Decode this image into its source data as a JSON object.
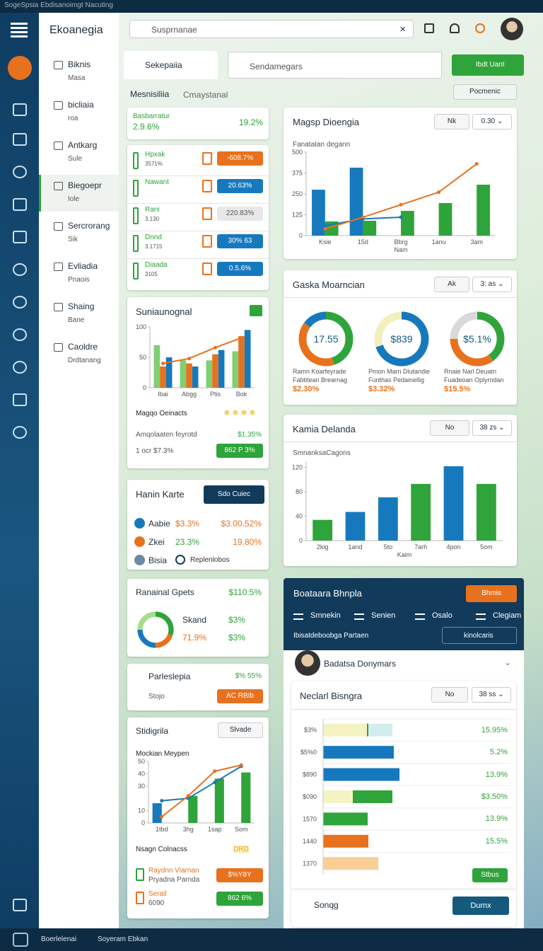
{
  "top_bar": {
    "title": "SogeSpsia Ebdisanoimgt Nacuting"
  },
  "sidebar": {
    "title": "Ekoanegia",
    "items": [
      {
        "label": "Biknis",
        "sub": "Masa"
      },
      {
        "label": "bicliaia",
        "sub": "roa"
      },
      {
        "label": "Antkarg",
        "sub": "Sule"
      },
      {
        "label": "Biegoepr",
        "sub": "Iole"
      },
      {
        "label": "Sercrorang",
        "sub": "Sik"
      },
      {
        "label": "Evliadia",
        "sub": "Pnaois"
      },
      {
        "label": "Shaing",
        "sub": "Bane"
      },
      {
        "label": "Caoldre",
        "sub": "Drdtanang"
      }
    ]
  },
  "header": {
    "search": "Susprnanae"
  },
  "toolbar": {
    "tab": "Sekepaiia",
    "search": "Sendamegars",
    "button": "Ibdt Uant"
  },
  "section": {
    "title": "Mesnisiliia",
    "subtitle": "Cmaystanal",
    "button": "Pocmenic"
  },
  "summary": {
    "label": "Basbarratur",
    "value": "2.9.6%",
    "change": "19.2%"
  },
  "list": [
    {
      "label": "Hpxak",
      "sub": "3571%",
      "pill": "-608.7%"
    },
    {
      "label": "Nawant",
      "sub": "",
      "pill": "20.63%"
    },
    {
      "label": "Rani",
      "sub": "3.130",
      "pill": "220.83%"
    },
    {
      "label": "Dnnd",
      "sub": "3.1715",
      "pill": "30% 63"
    },
    {
      "label": "Diaada",
      "sub": "3105",
      "pill": "0.5.6%"
    }
  ],
  "sales_card": {
    "legend": "Magqo Oeinacts",
    "row_label": "Amqolaaten feyrotd",
    "row_value": "$1.35%",
    "row2_label": "1 ocr $7.3%",
    "button": "862 P 3%"
  },
  "hanin": {
    "title": "Hanin Karte",
    "button": "Sdo Cuiec",
    "rows": [
      {
        "label": "Aabie",
        "a": "$3.3%",
        "b": "$3.00.52%"
      },
      {
        "label": "Zkei",
        "a": "23.3%",
        "b": "19.80%"
      },
      {
        "label": "Bisia",
        "a": "Replenlobos"
      }
    ]
  },
  "goals": {
    "value": "$110:5%",
    "label1": "Skand",
    "value1": "$3%",
    "label2": "71.9%",
    "value2": "$3%"
  },
  "parle": {
    "title": "Parleslepia",
    "value": "$% 55%",
    "sub": "Stojo",
    "button": "AC RBIb"
  },
  "stidi": {
    "title": "Stidigrila",
    "button": "Slvade",
    "legend": "Nsagn Colnacss",
    "legend_value": "DRD",
    "rows": [
      {
        "label": "Raydnn Viarnan",
        "sub": "Pryadna Parnda",
        "button": "$%Y8Y"
      },
      {
        "label": "Serail",
        "sub": "6090",
        "button": "862 6%"
      }
    ]
  },
  "magsp": {
    "title": "Magsp Dioengia",
    "chip": "Nk",
    "select": "0.30"
  },
  "gaska": {
    "title": "Gaska Moarncian",
    "chip": "Ak",
    "select": "3: as",
    "captions": [
      [
        "Ramn Koarfeyrade",
        "Fabtitean Brearnag",
        "$2.30%"
      ],
      [
        "Pmon Marn Diutandie",
        "Funthas Pedainellig",
        "$3.32%"
      ],
      [
        "Rnaie Narl Deuatn",
        "Fuadeoan Oplyrndan",
        "$15.5%"
      ]
    ]
  },
  "kamia": {
    "title": "Kamia Delanda",
    "chip": "No",
    "select": "38 zs"
  },
  "boat": {
    "title": "Boataara Bhnpla",
    "button": "Bhmis",
    "tabs": [
      "Smnekin",
      "Senien",
      "Osalo",
      "Clegiam"
    ],
    "row": "Ibisatdeboobga Partaen",
    "select": "kinolcaris",
    "profile": "Badatsa Donymars"
  },
  "necl": {
    "title": "Neclarl Bisngra",
    "chip": "No",
    "select": "38 ss",
    "right_labels": [
      "15.95%",
      "5.2%",
      "13.9%",
      "$3.50%",
      "13.9%",
      "15.5%"
    ],
    "button": "Stbus",
    "search": "Sonqg",
    "action": "Durnx"
  },
  "bottom_bar": {
    "left": "Boerlelenai",
    "right": "Soyeram Ebkan"
  },
  "chart_data": [
    {
      "type": "bar",
      "title": "Suniaunognal",
      "categories": [
        "Ibai",
        "Abgg",
        "Ptis",
        "Bok"
      ],
      "ylim": [
        0,
        100
      ],
      "yticks": [
        0,
        50,
        100
      ],
      "series": [
        {
          "color": "#7fcf74",
          "values": [
            70,
            45,
            45,
            60
          ]
        },
        {
          "color": "#e8711d",
          "values": [
            35,
            40,
            55,
            85
          ]
        },
        {
          "color": "#1779bd",
          "values": [
            50,
            35,
            62,
            95
          ]
        },
        {
          "type": "line",
          "color": "#e8711d",
          "values": [
            40,
            48,
            66,
            82
          ]
        }
      ]
    },
    {
      "type": "bar",
      "title": "Mockian Meypen",
      "categories": [
        "1tbd",
        "3hg",
        "1sap",
        "Som"
      ],
      "ylim": [
        0,
        50
      ],
      "yticks": [
        0,
        10,
        30,
        40,
        50
      ],
      "series": [
        {
          "color": "#1779bd",
          "values": [
            16,
            null,
            null,
            null
          ]
        },
        {
          "color": "#2ea43a",
          "values": [
            null,
            22,
            36,
            41
          ]
        },
        {
          "type": "line",
          "color": "#1779bd",
          "values": [
            18,
            20,
            33,
            46
          ]
        },
        {
          "type": "line",
          "color": "#e8711d",
          "values": [
            5,
            22,
            42,
            47
          ]
        }
      ]
    },
    {
      "type": "bar",
      "title": "Fanatatan degann",
      "xlabel": "Nam",
      "categories": [
        "Ksie",
        "15d",
        "Bbrg",
        "1anu",
        "3am"
      ],
      "ylim": [
        0,
        500
      ],
      "yticks": [
        0,
        125,
        250,
        375,
        500
      ],
      "series": [
        {
          "color": "#1779bd",
          "values": [
            275,
            407,
            null,
            null,
            null
          ]
        },
        {
          "color": "#2ea43a",
          "values": [
            85,
            89,
            148,
            195,
            305
          ]
        },
        {
          "type": "line",
          "color": "#1779bd",
          "values": [
            60,
            100,
            110,
            null,
            null
          ]
        },
        {
          "type": "line",
          "color": "#e8711d",
          "values": [
            40,
            110,
            185,
            260,
            430
          ]
        }
      ]
    },
    {
      "type": "pie",
      "center": "17.55",
      "colors": [
        "#2ea43a",
        "#e8711d",
        "#1779bd"
      ],
      "values": [
        45,
        40,
        15
      ]
    },
    {
      "type": "pie",
      "center": "$839",
      "colors": [
        "#1779bd",
        "#f3efbd"
      ],
      "values": [
        70,
        30
      ]
    },
    {
      "type": "pie",
      "center": "$5.1%",
      "colors": [
        "#2ea43a",
        "#e8711d",
        "#d9d9d9"
      ],
      "values": [
        40,
        35,
        25
      ]
    },
    {
      "type": "bar",
      "title": "SmnanksaCagons",
      "xlabel": "Kaim",
      "categories": [
        "2kig",
        "1and",
        "5to",
        "7arh",
        "4pon",
        "5om"
      ],
      "ylim": [
        0,
        130
      ],
      "yticks": [
        0,
        40,
        80,
        120
      ],
      "series": [
        {
          "colors": [
            "#2ea43a",
            "#1779bd",
            "#1779bd",
            "#2ea43a",
            "#1779bd",
            "#2ea43a"
          ],
          "values": [
            34,
            47,
            71,
            93,
            122,
            93
          ]
        }
      ]
    },
    {
      "type": "hbar",
      "categories": [
        "$3%",
        "$5%0",
        "$890",
        "$090",
        "1570",
        "1440",
        "1370"
      ],
      "xlim": [
        0,
        210
      ],
      "series": [
        {
          "color": "#f5f2c4",
          "values": [
            62,
            null,
            null,
            42,
            null,
            null,
            null
          ]
        },
        {
          "color": "#1779bd",
          "values": [
            null,
            100,
            108,
            null,
            null,
            null,
            null
          ]
        },
        {
          "color": "#2ea43a",
          "values": [
            2,
            null,
            null,
            56,
            63,
            null,
            null
          ]
        },
        {
          "color": "#e8711d",
          "values": [
            null,
            null,
            null,
            null,
            null,
            64,
            null
          ]
        },
        {
          "color": "#d3ecee",
          "values": [
            34,
            null,
            null,
            null,
            null,
            null,
            null
          ]
        },
        {
          "color": "#f8cf96",
          "values": [
            null,
            null,
            null,
            null,
            null,
            null,
            78
          ]
        }
      ]
    },
    {
      "type": "pie",
      "colors": [
        "#2ea43a",
        "#e8711d",
        "#1779bd",
        "#a6dc8f"
      ],
      "values": [
        30,
        20,
        25,
        25
      ]
    }
  ]
}
